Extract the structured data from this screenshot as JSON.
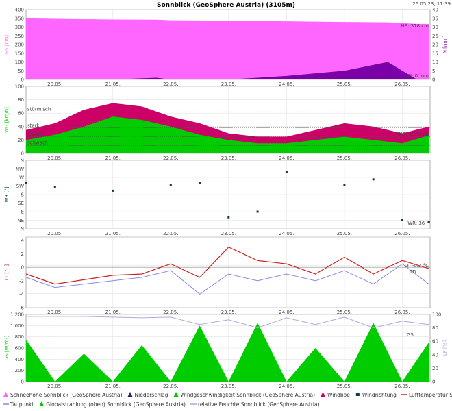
{
  "title": "Sonnblick (GeoSphere Austria) (3105m)",
  "timestamp": "26.05.23, 11:39",
  "x_ticks": [
    "20.05.",
    "21.05.",
    "22.05.",
    "23.05.",
    "24.05.",
    "25.05.",
    "26.05."
  ],
  "panel1": {
    "ylabel_left": "HS [cm]",
    "ylabel_right": "N [mm]",
    "left_ticks": [
      "0",
      "50",
      "100",
      "150",
      "200",
      "250",
      "300",
      "350",
      "400"
    ],
    "right_ticks": [
      "0",
      "5",
      "10",
      "15",
      "20",
      "25",
      "30",
      "35",
      "40"
    ],
    "annot_hs": "HS: 318 cm",
    "annot_n": "N: 0 mm",
    "color_hs": "#ff66ff",
    "color_n": "#7a00a8"
  },
  "panel2": {
    "ylabel": "WG [km/h]",
    "ticks": [
      "0",
      "20",
      "40",
      "60",
      "80",
      "100"
    ],
    "levels": [
      "stürmisch",
      "stark",
      "mäßig",
      "schwach"
    ],
    "annot": "WG: 27 km/h",
    "color_wind": "#00cc00",
    "color_gust": "#cc0066"
  },
  "panel3": {
    "ylabel": "WR [°]",
    "ticks": [
      "N",
      "NW",
      "W",
      "SW",
      "S",
      "SE",
      "E",
      "NE",
      "N"
    ],
    "annot": "WR: 36 °",
    "color": "#0b3a5c"
  },
  "panel4": {
    "ylabel": "LT [°C]",
    "ticks": [
      "-6",
      "-4",
      "-2",
      "0",
      "2",
      "4"
    ],
    "annot_lt": "LT: -0.2 °C",
    "annot_td": "TD",
    "color_lt": "#cc2222",
    "color_td": "#8888ee"
  },
  "panel5": {
    "ylabel_left": "GS [W/m²]",
    "ylabel_right": "LF [%]",
    "left_ticks": [
      "0",
      "200",
      "400",
      "600",
      "800",
      "1 000",
      "1 200"
    ],
    "right_ticks": [
      "0",
      "20",
      "40",
      "60",
      "80",
      "100"
    ],
    "annot": "GS",
    "color_gs": "#00cc00",
    "color_rh": "#b0a8dd"
  },
  "legend": [
    {
      "label": "Schneehöhe Sonnblick (GeoSphere Austria)",
      "color": "#ff66ff",
      "shape": "triangle"
    },
    {
      "label": "Niederschlag",
      "color": "#1a2a66",
      "shape": "triangle"
    },
    {
      "label": "Windgeschwindigkeit Sonnblick (GeoSphere Austria)",
      "color": "#00cc00",
      "shape": "triangle"
    },
    {
      "label": "Windböe",
      "color": "#cc0066",
      "shape": "triangle"
    },
    {
      "label": "Windrichtung",
      "color": "#0b3a5c",
      "shape": "square"
    },
    {
      "label": "Lufttemperatur Sonnblick (GeoSphere Austria)",
      "color": "#cc2222",
      "shape": "line"
    },
    {
      "label": "Taupunkt",
      "color": "#8888ee",
      "shape": "line"
    },
    {
      "label": "Globalstrahlung (oben) Sonnblick (GeoSphere Austria)",
      "color": "#00cc00",
      "shape": "triangle"
    },
    {
      "label": "relative Feuchte Sonnblick (GeoSphere Austria)",
      "color": "#b0a8dd",
      "shape": "line"
    }
  ],
  "chart_data": [
    {
      "type": "area",
      "xlabel": "",
      "x": [
        "19.05. 12:00",
        "20.05.",
        "21.05.",
        "21.05. 18:00",
        "22.05.",
        "23.05.",
        "24.05.",
        "25.05.",
        "25.05. 18:00",
        "26.05. 06:00",
        "26.05. 11:00"
      ],
      "series": [
        {
          "name": "Schneehöhe Sonnblick (GeoSphere Austria)",
          "axis": "HS [cm]",
          "values": [
            350,
            347,
            343,
            342,
            339,
            336,
            333,
            329,
            327,
            318,
            318
          ]
        },
        {
          "name": "Niederschlag",
          "axis": "N [mm]",
          "values": [
            0,
            0,
            0,
            1,
            0,
            0,
            2,
            5,
            10,
            0,
            0
          ]
        }
      ],
      "ylim_left": [
        0,
        400
      ],
      "ylim_right": [
        0,
        40
      ]
    },
    {
      "type": "area",
      "x": [
        "19.05. 12:00",
        "20.05.",
        "20.05. 12:00",
        "21.05.",
        "21.05. 12:00",
        "22.05.",
        "22.05. 12:00",
        "23.05.",
        "23.05. 12:00",
        "24.05.",
        "24.05. 12:00",
        "25.05.",
        "25.05. 12:00",
        "26.05.",
        "26.05. 11:00"
      ],
      "series": [
        {
          "name": "Windgeschwindigkeit Sonnblick (GeoSphere Austria)",
          "values": [
            20,
            28,
            40,
            55,
            50,
            40,
            28,
            20,
            15,
            15,
            20,
            25,
            20,
            15,
            27
          ]
        },
        {
          "name": "Windböe",
          "values": [
            35,
            45,
            65,
            75,
            70,
            55,
            45,
            30,
            25,
            25,
            35,
            45,
            40,
            30,
            40
          ]
        }
      ],
      "ylim": [
        0,
        100
      ]
    },
    {
      "type": "scatter",
      "x": [
        "19.05. 12:00",
        "20.05.",
        "21.05.",
        "22.05.",
        "22.05. 12:00",
        "23.05.",
        "23.05. 12:00",
        "24.05.",
        "25.05.",
        "25.05. 12:00",
        "26.05.",
        "26.05. 11:00"
      ],
      "series": [
        {
          "name": "Windrichtung",
          "values": [
            240,
            220,
            200,
            230,
            240,
            60,
            90,
            300,
            230,
            260,
            45,
            36
          ]
        }
      ],
      "ylim": [
        0,
        360
      ]
    },
    {
      "type": "line",
      "x": [
        "19.05. 12:00",
        "20.05.",
        "21.05.",
        "21.05. 12:00",
        "22.05.",
        "22.05. 12:00",
        "23.05.",
        "23.05. 12:00",
        "24.05.",
        "24.05. 12:00",
        "25.05.",
        "25.05. 12:00",
        "26.05.",
        "26.05. 11:00"
      ],
      "series": [
        {
          "name": "Lufttemperatur Sonnblick (GeoSphere Austria)",
          "values": [
            -1.0,
            -2.5,
            -1.2,
            -1.0,
            0.5,
            -1.5,
            3.0,
            1.0,
            0.5,
            -1.0,
            1.5,
            -1.0,
            1.0,
            -0.2
          ]
        },
        {
          "name": "Taupunkt",
          "values": [
            -1.5,
            -3.0,
            -2.0,
            -1.5,
            -0.5,
            -4.0,
            -1.0,
            -2.0,
            -1.0,
            -2.0,
            -0.5,
            -2.5,
            0.5,
            -2.5
          ]
        }
      ],
      "ylim": [
        -6,
        4.5
      ]
    },
    {
      "type": "area",
      "x": [
        "19.05. 12:00",
        "20.05.",
        "20.05. 12:00",
        "21.05.",
        "21.05. 12:00",
        "22.05.",
        "22.05. 12:00",
        "23.05.",
        "23.05. 12:00",
        "24.05.",
        "24.05. 12:00",
        "25.05.",
        "25.05. 12:00",
        "26.05.",
        "26.05. 11:00"
      ],
      "series": [
        {
          "name": "Globalstrahlung (oben) Sonnblick (GeoSphere Austria)",
          "values": [
            750,
            0,
            500,
            0,
            650,
            0,
            1000,
            0,
            1050,
            0,
            600,
            0,
            1050,
            0,
            700
          ]
        },
        {
          "name": "relative Feuchte Sonnblick (GeoSphere Austria)",
          "values": [
            97,
            97,
            97,
            96,
            95,
            96,
            85,
            92,
            80,
            95,
            85,
            96,
            80,
            90,
            85
          ]
        }
      ],
      "ylim_left": [
        0,
        1200
      ],
      "ylim_right": [
        0,
        100
      ]
    }
  ]
}
